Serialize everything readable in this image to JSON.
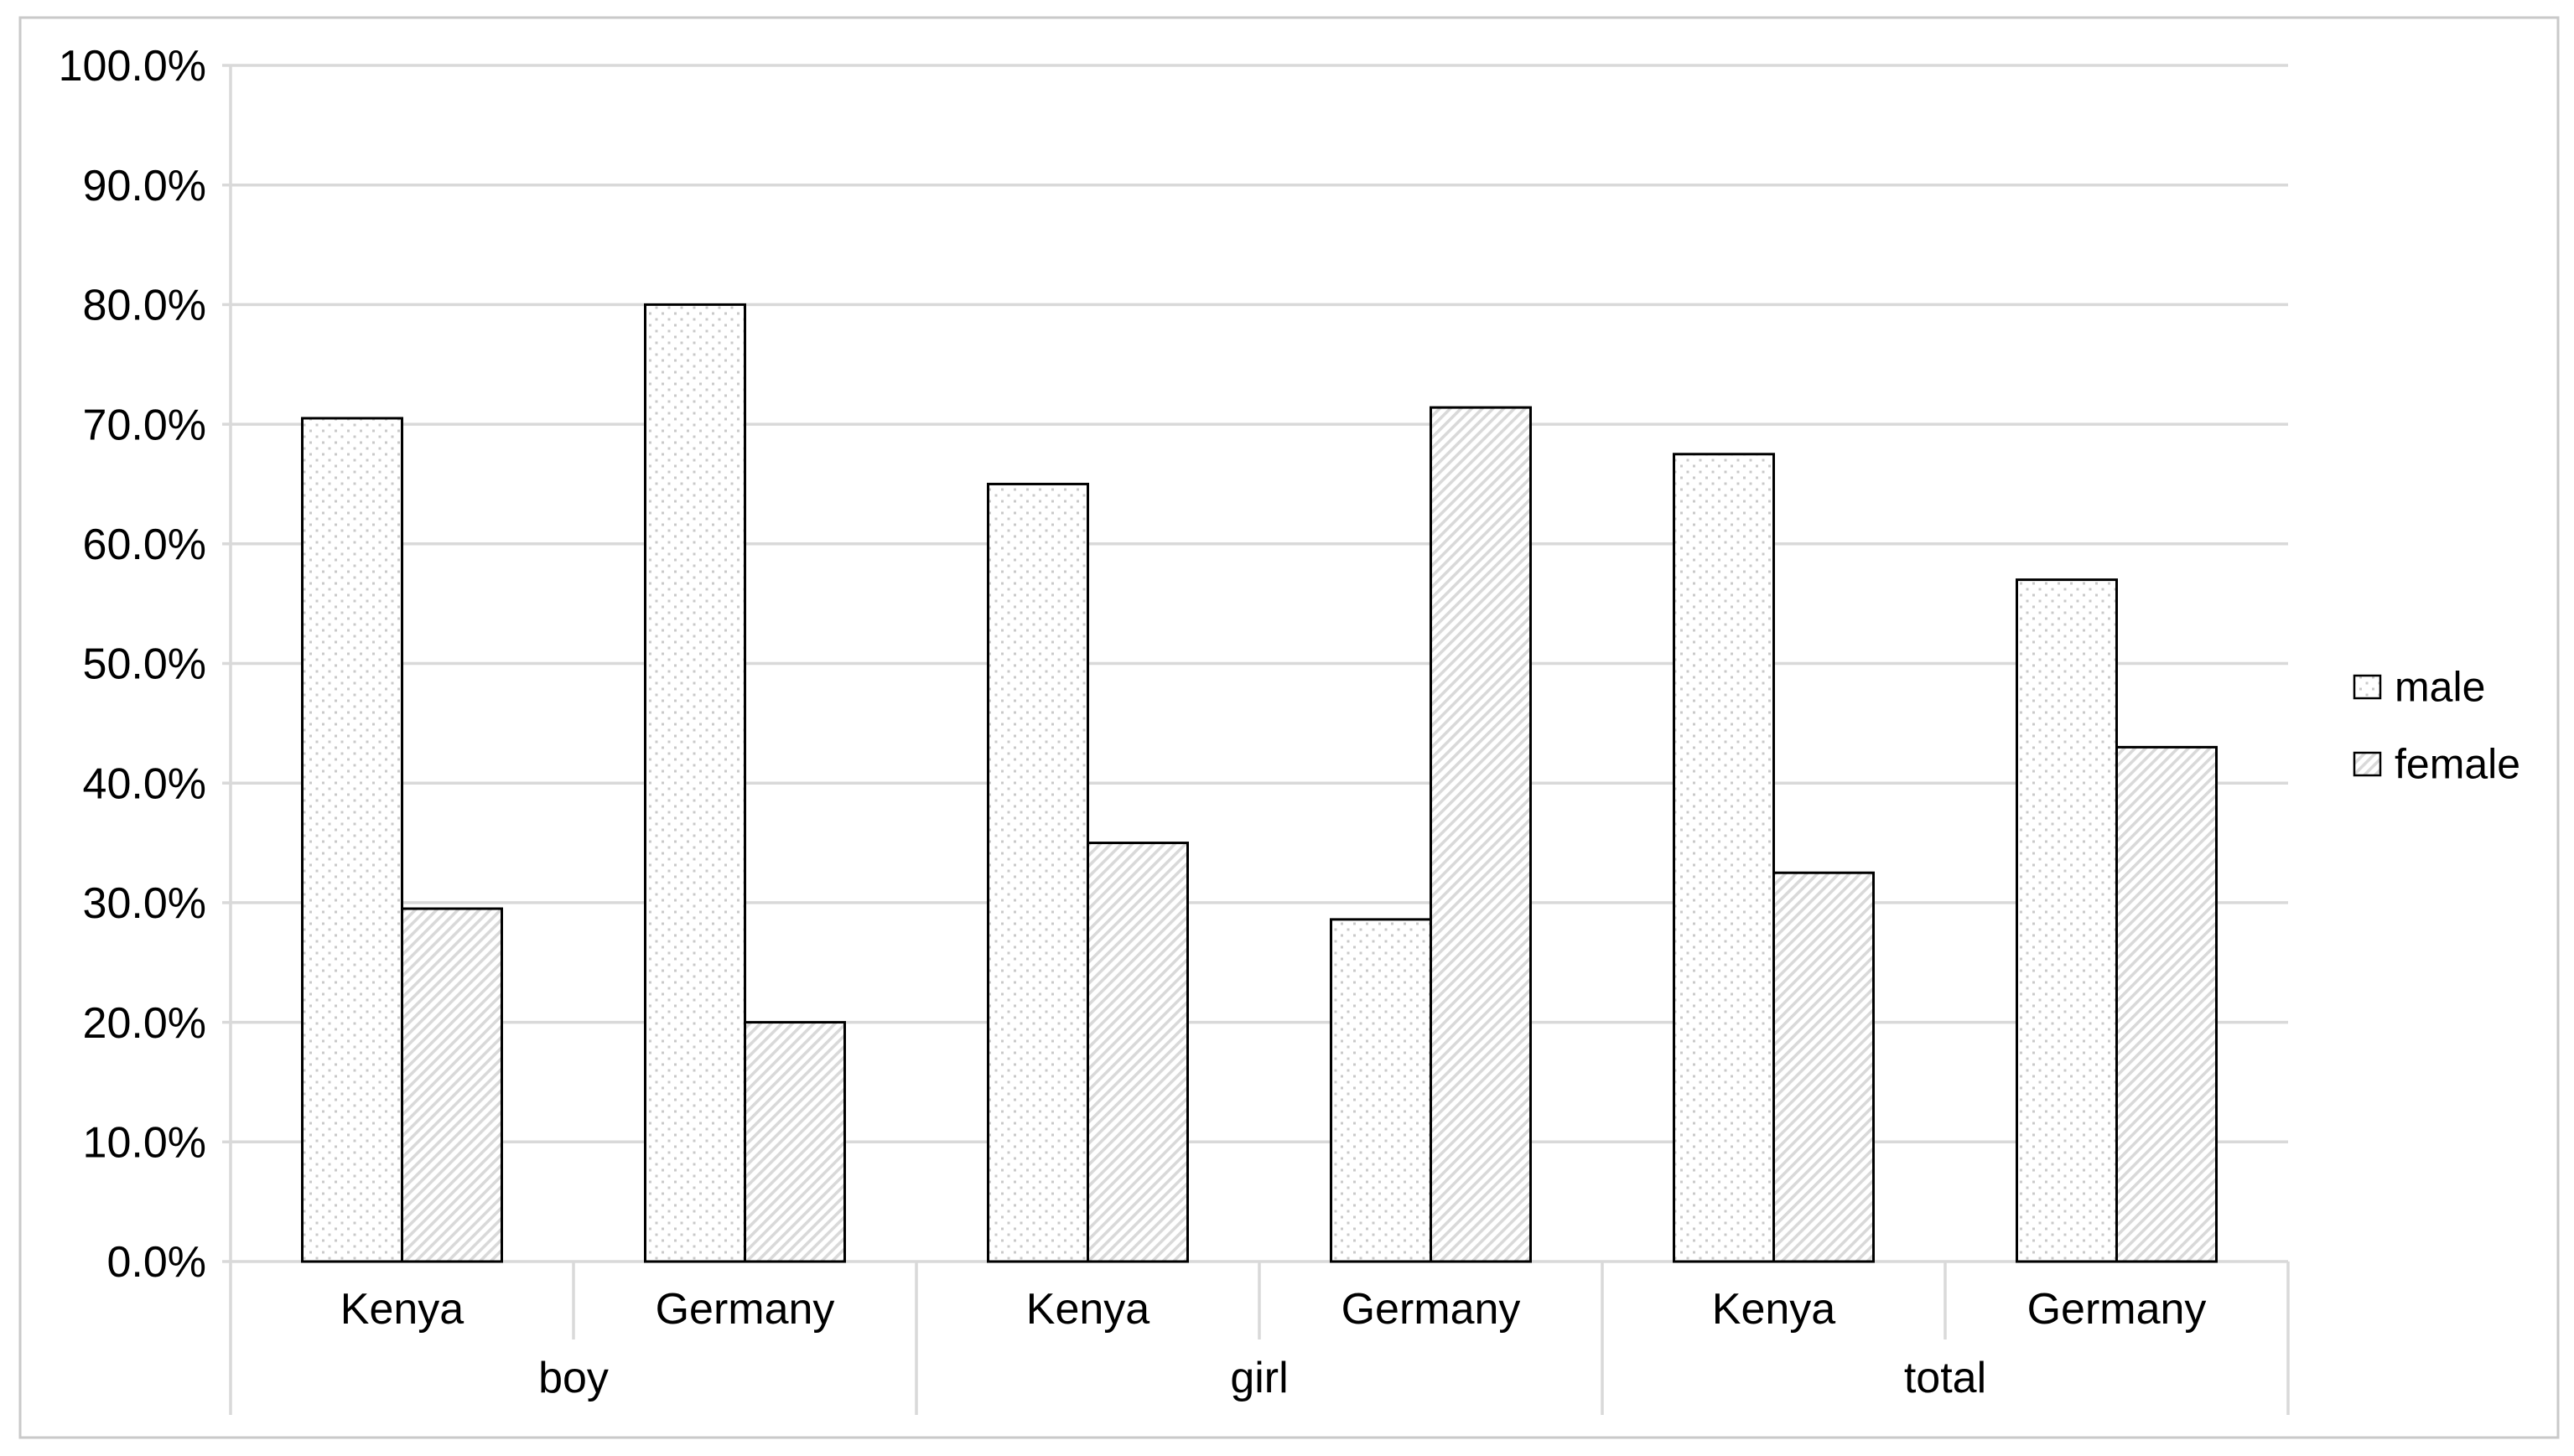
{
  "chart_data": {
    "type": "bar",
    "title": "",
    "group_labels": [
      "boy",
      "girl",
      "total"
    ],
    "sub_labels": [
      "Kenya",
      "Germany"
    ],
    "categories": [
      "boy / Kenya",
      "boy / Germany",
      "girl / Kenya",
      "girl / Germany",
      "total / Kenya",
      "total / Germany"
    ],
    "series": [
      {
        "name": "male",
        "fill_pattern": "dots",
        "values_pct": [
          70.5,
          80.0,
          65.0,
          28.6,
          67.5,
          57.0
        ]
      },
      {
        "name": "female",
        "fill_pattern": "diagonal-hatch",
        "values_pct": [
          29.5,
          20.0,
          35.0,
          71.4,
          32.5,
          43.0
        ]
      }
    ],
    "ylim": [
      0,
      100
    ],
    "y_tick_step": 10,
    "y_tick_labels": [
      "0.0%",
      "10.0%",
      "20.0%",
      "30.0%",
      "40.0%",
      "50.0%",
      "60.0%",
      "70.0%",
      "80.0%",
      "90.0%",
      "100.0%"
    ],
    "xlabel": "",
    "ylabel": "",
    "grid": true,
    "legend_position": "right-middle",
    "colors": {
      "grid": "#d9d9d9",
      "axis": "#d9d9d9",
      "chart_border": "#c9c9c9",
      "bar_border": "#000000",
      "dot_pattern_gray": "#c9c9c9",
      "hatch_pattern_gray": "#d9d9d9",
      "text": "#000000",
      "background": "#ffffff"
    }
  }
}
